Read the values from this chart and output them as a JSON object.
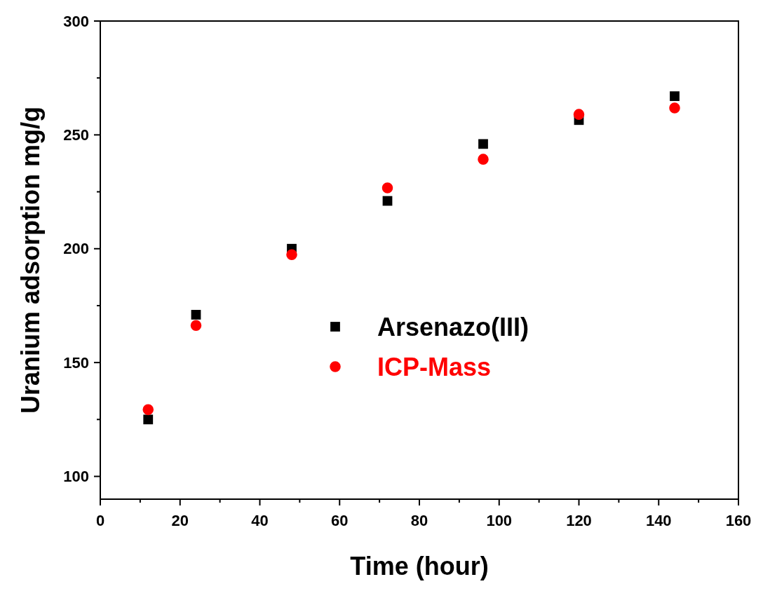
{
  "chart_data": {
    "type": "scatter",
    "xlabel": "Time (hour)",
    "ylabel": "Uranium adsorption mg/g",
    "xlim": [
      0,
      160
    ],
    "ylim": [
      90,
      300
    ],
    "xticks": [
      0,
      {
        "value": 10,
        "label": null
      },
      20,
      {
        "value": 30,
        "label": null
      },
      40,
      {
        "value": 50,
        "label": null
      },
      60,
      {
        "value": 70,
        "label": null
      },
      80,
      {
        "value": 90,
        "label": null
      },
      100,
      {
        "value": 110,
        "label": null
      },
      120,
      {
        "value": 130,
        "label": null
      },
      140,
      {
        "value": 150,
        "label": null
      },
      160
    ],
    "yticks": [
      100,
      {
        "value": 125,
        "label": null
      },
      150,
      {
        "value": 175,
        "label": null
      },
      200,
      {
        "value": 225,
        "label": null
      },
      250,
      {
        "value": 275,
        "label": null
      },
      300
    ],
    "x": [
      12,
      24,
      48,
      72,
      96,
      120,
      144
    ],
    "series": [
      {
        "name": "Arsenazo(III)",
        "color": "#000000",
        "marker": "square",
        "values": [
          125,
          171,
          200,
          221,
          246,
          256.5,
          267
        ]
      },
      {
        "name": "ICP-Mass",
        "color": "#ff0000",
        "marker": "circle",
        "values": [
          129.3,
          166.3,
          197.4,
          226.7,
          239.3,
          259,
          261.8
        ]
      }
    ],
    "legend": "center",
    "grid": false
  }
}
